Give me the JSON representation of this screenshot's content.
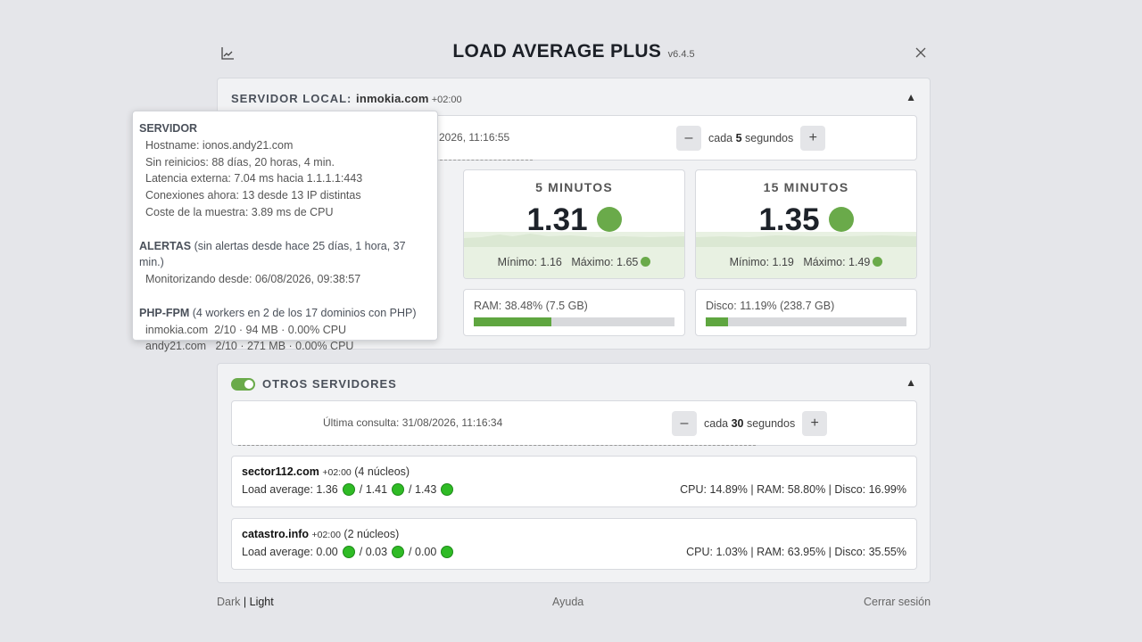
{
  "header": {
    "title": "LOAD AVERAGE PLUS",
    "version": "v6.4.5"
  },
  "local": {
    "title_prefix": "SERVIDOR LOCAL:",
    "host": "inmokia.com",
    "tz": "+02:00",
    "last_check": "2026, 11:16:55",
    "interval_prefix": "cada",
    "interval": "5",
    "interval_suffix": "segundos",
    "cards": [
      {
        "label": "5 MINUTOS",
        "value": "1.31",
        "min_label": "Mínimo:",
        "min": "1.16",
        "max_label": "Máximo:",
        "max": "1.65"
      },
      {
        "label": "15 MINUTOS",
        "value": "1.35",
        "min_label": "Mínimo:",
        "min": "1.19",
        "max_label": "Máximo:",
        "max": "1.49"
      }
    ],
    "resources": [
      {
        "label": "RAM: 38.48% (7.5 GB)",
        "fill_pct": 38.48
      },
      {
        "label": "Disco: 11.19% (238.7 GB)",
        "fill_pct": 11.19
      }
    ]
  },
  "others": {
    "title": "OTROS SERVIDORES",
    "toggle_on": true,
    "last_check": "Última consulta: 31/08/2026, 11:16:34",
    "interval_prefix": "cada",
    "interval": "30",
    "interval_suffix": "segundos",
    "servers": [
      {
        "name": "sector112.com",
        "tz": "+02:00",
        "cores": "(4 núcleos)",
        "load_label": "Load average:",
        "load1": "1.36",
        "load5": "/ 1.41",
        "load15": "/ 1.43",
        "stats": "CPU: 14.89% | RAM: 58.80% | Disco: 16.99%"
      },
      {
        "name": "catastro.info",
        "tz": "+02:00",
        "cores": "(2 núcleos)",
        "load_label": "Load average:",
        "load1": "0.00",
        "load5": "/ 0.03",
        "load15": "/ 0.00",
        "stats": "CPU: 1.03% | RAM: 63.95% | Disco: 35.55%"
      }
    ]
  },
  "footer": {
    "dark": "Dark",
    "separator": "|",
    "light": "Light",
    "help": "Ayuda",
    "logout": "Cerrar sesión"
  },
  "tooltip": {
    "server_head": "SERVIDOR",
    "server_lines": [
      "Hostname: ionos.andy21.com",
      "Sin reinicios: 88 días, 20 horas, 4 min.",
      "Latencia externa: 7.04 ms hacia 1.1.1.1:443",
      "Conexiones ahora: 13 desde 13 IP distintas",
      "Coste de la muestra: 3.89 ms de CPU"
    ],
    "alerts_head": "ALERTAS",
    "alerts_note": "(sin alertas desde hace 25 días, 1 hora, 37 min.)",
    "alerts_lines": [
      "Monitorizando desde: 06/08/2026, 09:38:57"
    ],
    "php_head": "PHP-FPM",
    "php_note": "(4 workers en 2 de los 17 dominios con PHP)",
    "php_lines": [
      "inmokia.com  2/10 · 94 MB · 0.00% CPU",
      "andy21.com   2/10 · 271 MB · 0.00% CPU"
    ]
  },
  "colors": {
    "accent_green": "#6aaa4a",
    "status_green": "#2fbb25",
    "bar_fill": "#5fa640"
  }
}
